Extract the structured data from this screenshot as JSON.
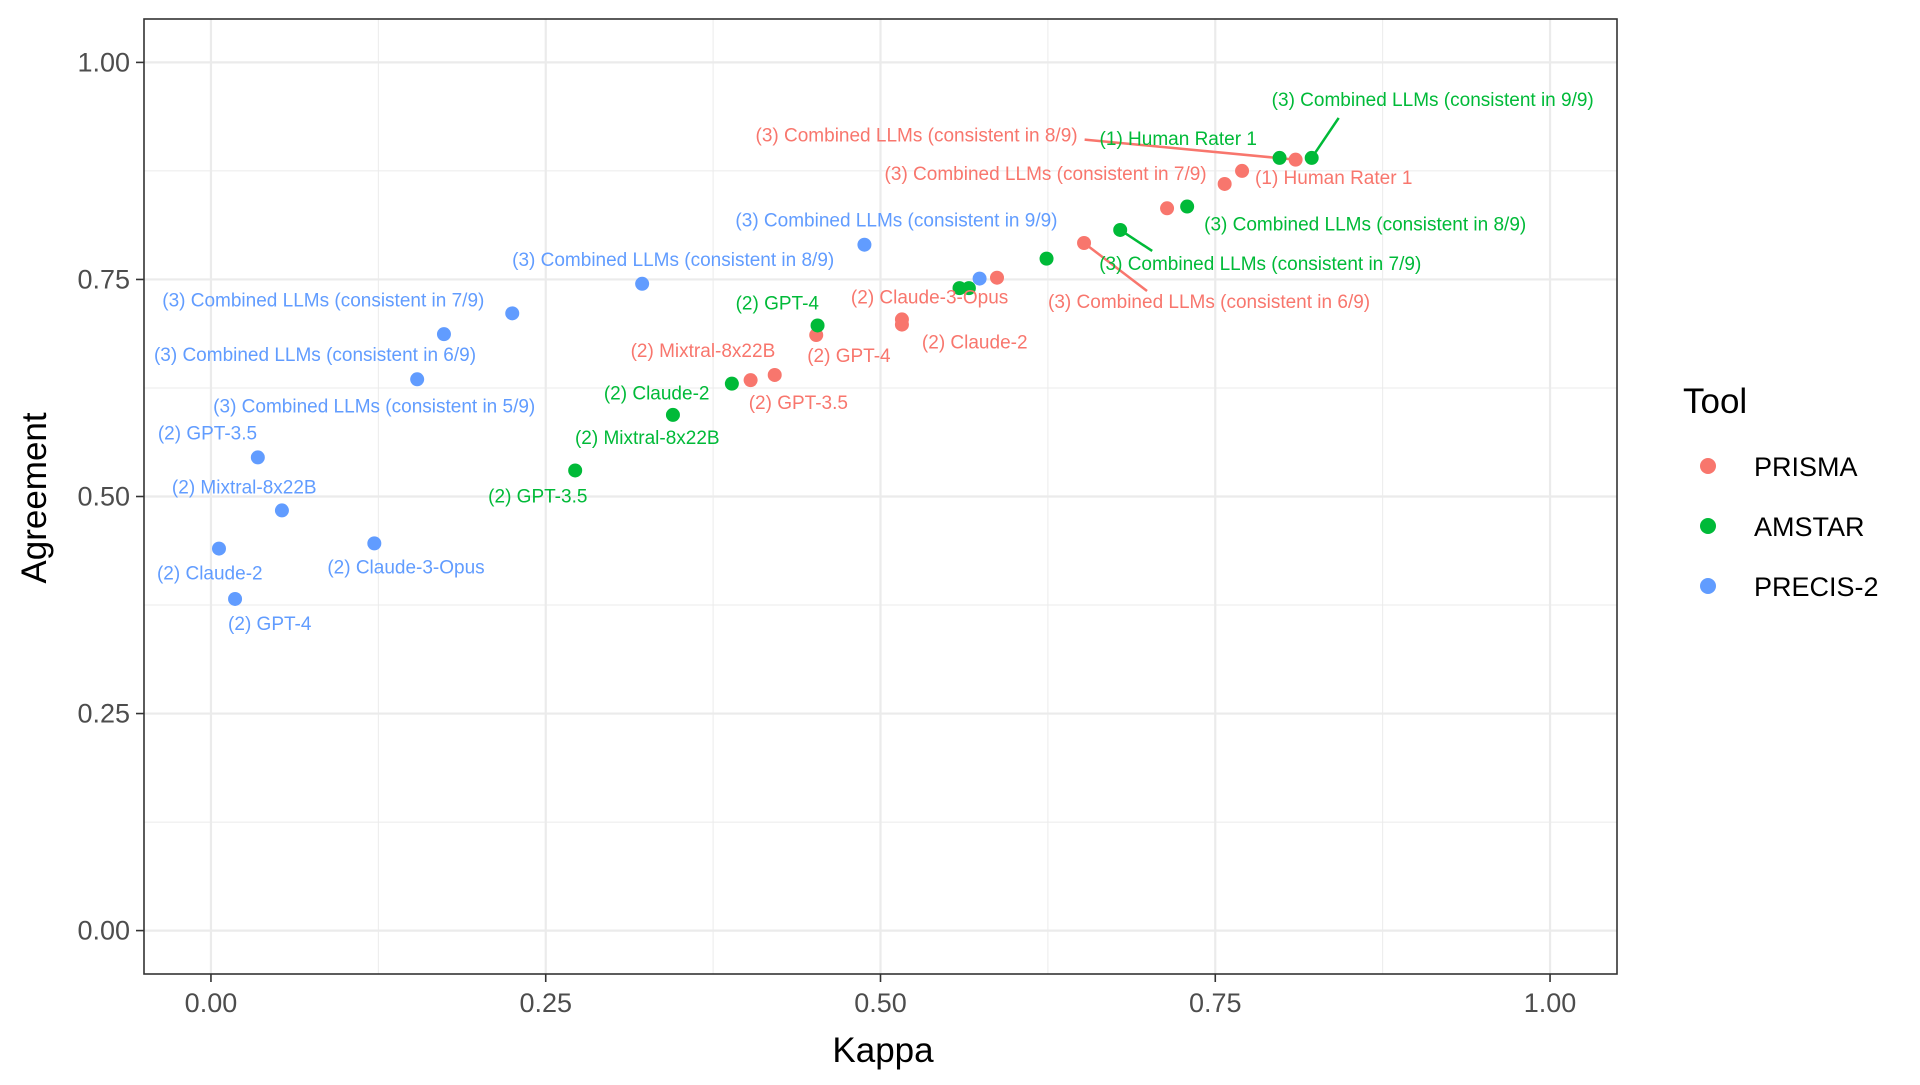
{
  "chart_data": {
    "type": "scatter",
    "xlabel": "Kappa",
    "ylabel": "Agreement",
    "xlim": [
      -0.05,
      1.05
    ],
    "ylim": [
      -0.05,
      1.05
    ],
    "x_ticks": [
      "0.00",
      "0.25",
      "0.50",
      "0.75",
      "1.00"
    ],
    "y_ticks": [
      "0.00",
      "0.25",
      "0.50",
      "0.75",
      "1.00"
    ],
    "grid": true,
    "legend": {
      "title": "Tool",
      "position": "right",
      "entries": [
        "PRISMA",
        "AMSTAR",
        "PRECIS-2"
      ]
    },
    "colors": {
      "PRISMA": "#F8766D",
      "AMSTAR": "#00BA38",
      "PRECIS-2": "#619CFF"
    },
    "series": [
      {
        "name": "PRISMA",
        "points": [
          {
            "x": 0.77,
            "y": 0.875,
            "label": "(1) Human Rater 1"
          },
          {
            "x": 0.81,
            "y": 0.888,
            "label": "(3) Combined LLMs (consistent in 8/9)"
          },
          {
            "x": 0.757,
            "y": 0.86,
            "label": "(3) Combined LLMs (consistent in 7/9)"
          },
          {
            "x": 0.714,
            "y": 0.832,
            "label": ""
          },
          {
            "x": 0.652,
            "y": 0.792,
            "label": "(3) Combined LLMs (consistent in 6/9)"
          },
          {
            "x": 0.587,
            "y": 0.752,
            "label": ""
          },
          {
            "x": 0.516,
            "y": 0.704,
            "label": "(2) Claude-3-Opus"
          },
          {
            "x": 0.516,
            "y": 0.698,
            "label": "(2) Claude-2"
          },
          {
            "x": 0.452,
            "y": 0.686,
            "label": "(2) GPT-4"
          },
          {
            "x": 0.421,
            "y": 0.64,
            "label": "(2) GPT-3.5"
          },
          {
            "x": 0.403,
            "y": 0.634,
            "label": "(2) Mixtral-8x22B"
          }
        ]
      },
      {
        "name": "AMSTAR",
        "points": [
          {
            "x": 0.822,
            "y": 0.89,
            "label": "(3) Combined LLMs (consistent in 9/9)"
          },
          {
            "x": 0.798,
            "y": 0.89,
            "label": "(1) Human Rater 1"
          },
          {
            "x": 0.729,
            "y": 0.834,
            "label": "(3) Combined LLMs (consistent in 8/9)"
          },
          {
            "x": 0.679,
            "y": 0.807,
            "label": "(3) Combined LLMs (consistent in 7/9)"
          },
          {
            "x": 0.624,
            "y": 0.774,
            "label": ""
          },
          {
            "x": 0.566,
            "y": 0.74,
            "label": ""
          },
          {
            "x": 0.559,
            "y": 0.74,
            "label": ""
          },
          {
            "x": 0.453,
            "y": 0.697,
            "label": "(2) GPT-4"
          },
          {
            "x": 0.389,
            "y": 0.63,
            "label": "(2) Claude-2"
          },
          {
            "x": 0.345,
            "y": 0.594,
            "label": "(2) Mixtral-8x22B"
          },
          {
            "x": 0.272,
            "y": 0.53,
            "label": "(2) GPT-3.5"
          }
        ]
      },
      {
        "name": "PRECIS-2",
        "points": [
          {
            "x": 0.488,
            "y": 0.79,
            "label": "(3) Combined LLMs (consistent in 9/9)"
          },
          {
            "x": 0.574,
            "y": 0.751,
            "label": ""
          },
          {
            "x": 0.322,
            "y": 0.745,
            "label": "(3) Combined LLMs (consistent in 8/9)"
          },
          {
            "x": 0.225,
            "y": 0.711,
            "label": "(3) Combined LLMs (consistent in 7/9)"
          },
          {
            "x": 0.174,
            "y": 0.687,
            "label": "(3) Combined LLMs (consistent in 6/9)"
          },
          {
            "x": 0.154,
            "y": 0.635,
            "label": "(3) Combined LLMs (consistent in 5/9)"
          },
          {
            "x": 0.035,
            "y": 0.545,
            "label": "(2) GPT-3.5"
          },
          {
            "x": 0.053,
            "y": 0.484,
            "label": "(2) Mixtral-8x22B"
          },
          {
            "x": 0.122,
            "y": 0.446,
            "label": "(2) Claude-3-Opus"
          },
          {
            "x": 0.006,
            "y": 0.44,
            "label": "(2) Claude-2"
          },
          {
            "x": 0.018,
            "y": 0.382,
            "label": "(2) GPT-4"
          }
        ]
      }
    ]
  }
}
